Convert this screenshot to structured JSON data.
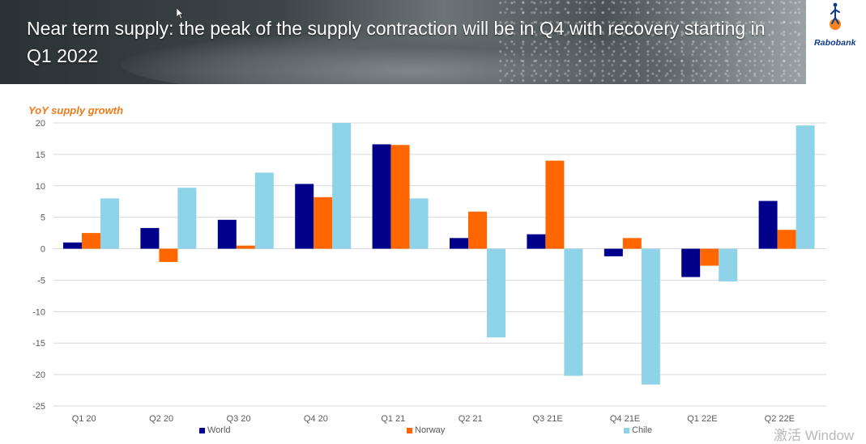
{
  "slide": {
    "title": "Near term supply: the peak of the supply contraction will be in Q4 with recovery starting in Q1 2022",
    "logo_text": "Rabobank",
    "watermark": "激活 Window"
  },
  "colors": {
    "world": "#00008b",
    "norway": "#ff6600",
    "chile": "#8fd3e8",
    "title_orange": "#f07a1a",
    "grid": "#d9d9d9",
    "axis_text": "#595959"
  },
  "chart_data": {
    "type": "bar",
    "title": "YoY supply growth",
    "xlabel": "",
    "ylabel": "",
    "ylim": [
      -25,
      20
    ],
    "yticks": [
      20,
      15,
      10,
      5,
      0,
      -5,
      -10,
      -15,
      -20,
      -25
    ],
    "grid": true,
    "legend_position": "bottom",
    "categories": [
      "Q1 20",
      "Q2 20",
      "Q3 20",
      "Q4 20",
      "Q1 21",
      "Q2 21",
      "Q3 21E",
      "Q4 21E",
      "Q1 22E",
      "Q2 22E"
    ],
    "series": [
      {
        "name": "World",
        "values": [
          1.0,
          3.3,
          4.6,
          10.3,
          16.6,
          1.7,
          2.3,
          -1.2,
          -4.5,
          7.6
        ]
      },
      {
        "name": "Norway",
        "values": [
          2.5,
          -2.1,
          0.5,
          8.2,
          16.5,
          5.9,
          14.0,
          1.7,
          -2.7,
          3.0
        ]
      },
      {
        "name": "Chile",
        "values": [
          8.0,
          9.7,
          12.1,
          20.0,
          8.0,
          -14.1,
          -20.2,
          -21.6,
          -5.2,
          19.6
        ]
      }
    ]
  }
}
